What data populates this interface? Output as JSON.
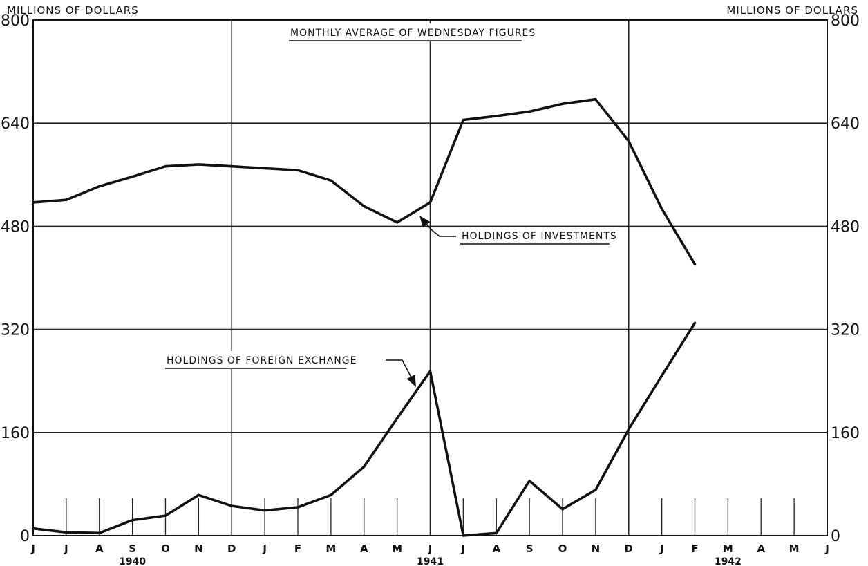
{
  "chart_data": {
    "type": "line",
    "title": "MONTHLY AVERAGE OF WEDNESDAY FIGURES",
    "ylabel_left": "MILLIONS OF DOLLARS",
    "ylabel_right": "MILLIONS OF DOLLARS",
    "ylim": [
      0,
      800
    ],
    "yticks": [
      0,
      160,
      320,
      480,
      640,
      800
    ],
    "grid": true,
    "x_month_labels": [
      "J",
      "J",
      "A",
      "S",
      "O",
      "N",
      "D",
      "J",
      "F",
      "M",
      "A",
      "M",
      "J",
      "J",
      "A",
      "S",
      "O",
      "N",
      "D",
      "J",
      "F",
      "M",
      "A",
      "M",
      "J"
    ],
    "x_year_labels": [
      {
        "label": "1940",
        "index": 3
      },
      {
        "label": "1941",
        "index": 12
      },
      {
        "label": "1942",
        "index": 21
      }
    ],
    "series": [
      {
        "name": "HOLDINGS OF INVESTMENTS",
        "x": [
          0,
          1,
          2,
          3,
          4,
          5,
          6,
          7,
          8,
          9,
          10,
          11,
          12,
          13,
          14,
          15,
          16,
          17,
          18,
          19,
          20
        ],
        "values": [
          517,
          521,
          542,
          557,
          573,
          576,
          573,
          570,
          567,
          551,
          511,
          486,
          517,
          645,
          651,
          658,
          670,
          677,
          612,
          507,
          421
        ]
      },
      {
        "name": "HOLDINGS OF FOREIGN EXCHANGE",
        "x": [
          0,
          1,
          2,
          3,
          4,
          5,
          6,
          7,
          8,
          9,
          10,
          11,
          12,
          13,
          14,
          15,
          16,
          17,
          18,
          19,
          20
        ],
        "values": [
          11,
          5,
          4,
          24,
          31,
          63,
          46,
          39,
          44,
          63,
          107,
          182,
          255,
          0,
          4,
          85,
          41,
          71,
          165,
          248,
          330
        ]
      }
    ]
  }
}
